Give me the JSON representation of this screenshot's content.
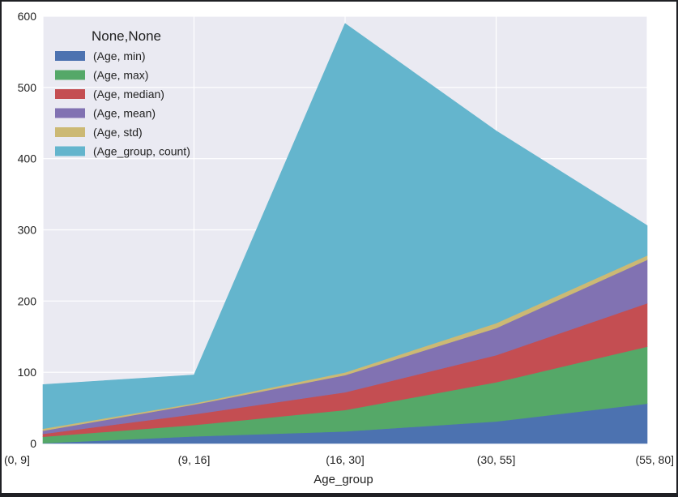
{
  "chart_data": {
    "type": "area",
    "stacked": true,
    "title": "",
    "xlabel": "Age_group",
    "ylabel": "",
    "categories": [
      "(0, 9]",
      "(9, 16]",
      "(16, 30]",
      "(30, 55]",
      "(55, 80]"
    ],
    "ylim": [
      0,
      600
    ],
    "yticks": [
      0,
      100,
      200,
      300,
      400,
      500,
      600
    ],
    "grid": true,
    "legend_title": "None,None",
    "legend_position": "top-left",
    "series": [
      {
        "name": "(Age, min)",
        "color": "#4c72b0",
        "values": [
          0.42,
          10,
          17,
          31,
          56
        ]
      },
      {
        "name": "(Age, max)",
        "color": "#55a868",
        "values": [
          9,
          16,
          30,
          55,
          80
        ]
      },
      {
        "name": "(Age, median)",
        "color": "#c44e52",
        "values": [
          4,
          15,
          25,
          38,
          61
        ]
      },
      {
        "name": "(Age, mean)",
        "color": "#8172b2",
        "values": [
          4.5,
          13.5,
          24,
          38,
          61
        ]
      },
      {
        "name": "(Age, std)",
        "color": "#ccb974",
        "values": [
          2.8,
          1.8,
          3.8,
          7,
          6
        ]
      },
      {
        "name": "(Age_group, count)",
        "color": "#64b5cd",
        "values": [
          62,
          40,
          490,
          270,
          42
        ]
      }
    ]
  }
}
